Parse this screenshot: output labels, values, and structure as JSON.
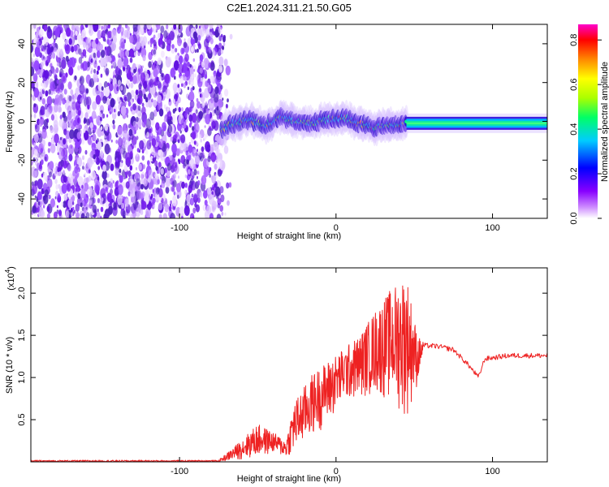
{
  "title": "C2E1.2024.311.21.50.G05",
  "chart_data": [
    {
      "type": "heatmap",
      "xlabel": "Height of straight line (km)",
      "ylabel": "Frequency (Hz)",
      "xlim": [
        -195,
        135
      ],
      "ylim": [
        -50,
        50
      ],
      "xticks": [
        -100,
        0,
        100
      ],
      "yticks": [
        -40,
        -20,
        0,
        20,
        40
      ],
      "colorbar": {
        "label": "Normalized spectral amplitude",
        "range": [
          0,
          0.87
        ],
        "ticks": [
          0.0,
          0.2,
          0.4,
          0.6,
          0.8
        ],
        "tick_labels": [
          "0.0",
          "0.2",
          "0.4",
          "0.6",
          "0.8"
        ],
        "colormap": [
          "#ffffff",
          "#8800ff",
          "#0000ff",
          "#00ccff",
          "#00ff66",
          "#aaff00",
          "#ffff00",
          "#ff8800",
          "#ff0000",
          "#ff00cc"
        ]
      },
      "noise_region_x": [
        -195,
        -73
      ],
      "signal_centerline": [
        {
          "x": -73,
          "y": -4
        },
        {
          "x": -65,
          "y": -1
        },
        {
          "x": -55,
          "y": 1
        },
        {
          "x": -45,
          "y": -2
        },
        {
          "x": -35,
          "y": 2
        },
        {
          "x": -25,
          "y": 0
        },
        {
          "x": -15,
          "y": -1
        },
        {
          "x": -5,
          "y": 1
        },
        {
          "x": 5,
          "y": 2
        },
        {
          "x": 15,
          "y": -1
        },
        {
          "x": 25,
          "y": -3
        },
        {
          "x": 35,
          "y": -2
        },
        {
          "x": 45,
          "y": -1
        },
        {
          "x": 135,
          "y": -1
        }
      ]
    },
    {
      "type": "line",
      "xlabel": "Height of straight line (km)",
      "ylabel": "SNR (10 * v/v)",
      "y_scale_note": "(x10",
      "y_scale_exp": "4",
      "xlim": [
        -195,
        135
      ],
      "ylim": [
        0,
        2.3
      ],
      "xticks": [
        -100,
        0,
        100
      ],
      "yticks": [
        0.5,
        1.0,
        1.5,
        2.0
      ],
      "ytick_labels": [
        "0.5",
        "1.0",
        "1.5",
        "2.0"
      ],
      "series": [
        {
          "color": "#ee2222",
          "envelope": [
            {
              "x": -195,
              "lo": 0.0,
              "hi": 0.02
            },
            {
              "x": -75,
              "lo": 0.0,
              "hi": 0.02
            },
            {
              "x": -65,
              "lo": 0.02,
              "hi": 0.18
            },
            {
              "x": -50,
              "lo": 0.05,
              "hi": 0.45
            },
            {
              "x": -40,
              "lo": 0.1,
              "hi": 0.35
            },
            {
              "x": -32,
              "lo": 0.05,
              "hi": 0.25
            },
            {
              "x": -27,
              "lo": 0.1,
              "hi": 0.7
            },
            {
              "x": -15,
              "lo": 0.3,
              "hi": 1.05
            },
            {
              "x": -5,
              "lo": 0.45,
              "hi": 1.2
            },
            {
              "x": 5,
              "lo": 0.7,
              "hi": 1.35
            },
            {
              "x": 15,
              "lo": 0.75,
              "hi": 1.5
            },
            {
              "x": 25,
              "lo": 0.8,
              "hi": 1.8
            },
            {
              "x": 35,
              "lo": 0.7,
              "hi": 2.05
            },
            {
              "x": 45,
              "lo": 0.5,
              "hi": 2.25
            },
            {
              "x": 52,
              "lo": 0.9,
              "hi": 1.5
            },
            {
              "x": 56,
              "lo": 1.3,
              "hi": 1.42
            }
          ],
          "smooth": [
            {
              "x": 56,
              "y": 1.38
            },
            {
              "x": 65,
              "y": 1.37
            },
            {
              "x": 75,
              "y": 1.33
            },
            {
              "x": 85,
              "y": 1.14
            },
            {
              "x": 91,
              "y": 1.0
            },
            {
              "x": 95,
              "y": 1.22
            },
            {
              "x": 110,
              "y": 1.26
            },
            {
              "x": 135,
              "y": 1.26
            }
          ]
        }
      ]
    }
  ]
}
